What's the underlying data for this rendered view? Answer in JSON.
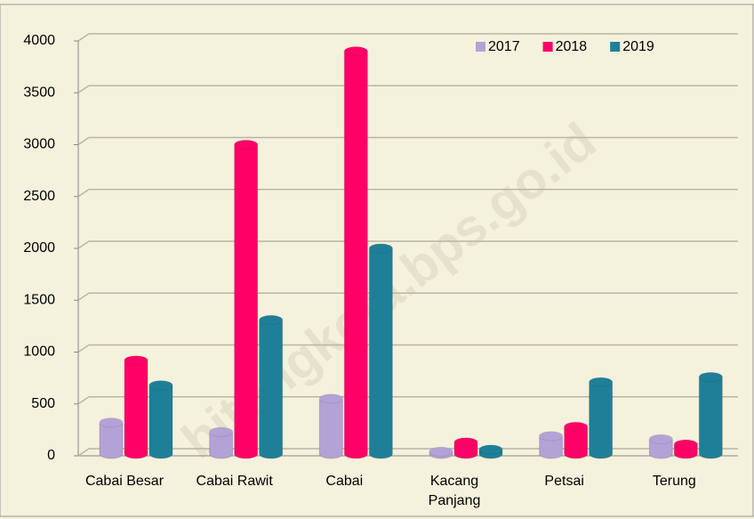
{
  "chart_data": {
    "type": "bar",
    "categories": [
      "Cabai Besar",
      "Cabai Rawit",
      "Cabai",
      "Kacang Panjang",
      "Petsai",
      "Terung"
    ],
    "series": [
      {
        "name": "2017",
        "color": "#b3a2d6",
        "values": [
          320,
          230,
          550,
          40,
          190,
          160
        ]
      },
      {
        "name": "2018",
        "color": "#ff0066",
        "values": [
          920,
          3000,
          3900,
          130,
          280,
          110
        ]
      },
      {
        "name": "2019",
        "color": "#1f7f99",
        "values": [
          680,
          1310,
          2000,
          60,
          710,
          760
        ]
      }
    ],
    "ylim": [
      0,
      4000
    ],
    "yticks": [
      0,
      500,
      1000,
      1500,
      2000,
      2500,
      3000,
      3500,
      4000
    ],
    "grid": true,
    "legend": "upper right",
    "watermark": "bitungkota.bps.go.id"
  }
}
